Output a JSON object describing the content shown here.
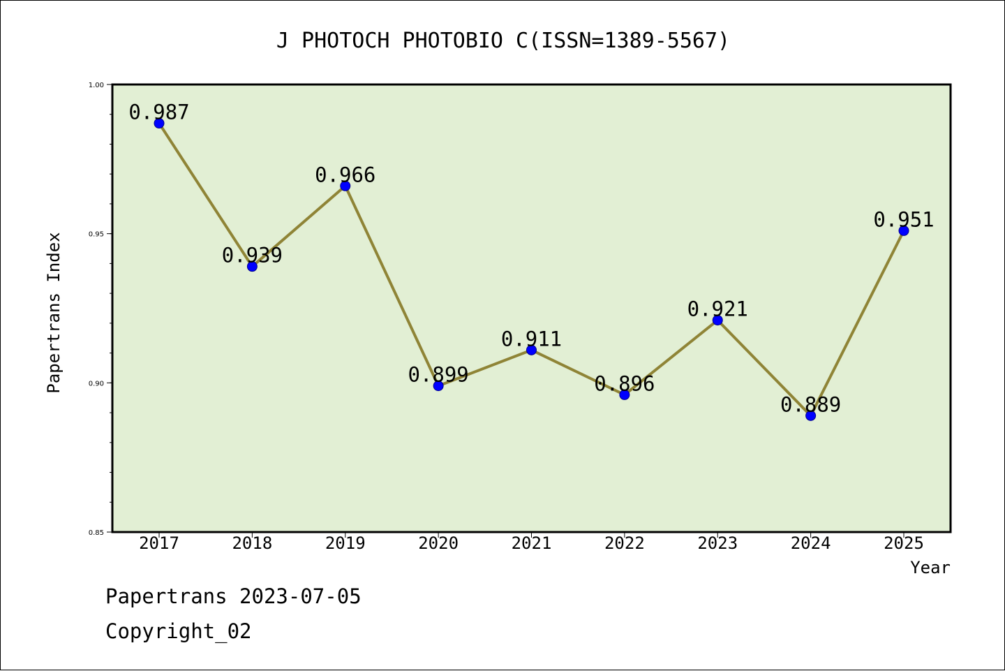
{
  "chart_data": {
    "type": "line",
    "title": "J PHOTOCH PHOTOBIO C(ISSN=1389-5567)",
    "xlabel": "Year",
    "ylabel": "Papertrans Index",
    "categories": [
      "2017",
      "2018",
      "2019",
      "2020",
      "2021",
      "2022",
      "2023",
      "2024",
      "2025"
    ],
    "values": [
      0.987,
      0.939,
      0.966,
      0.899,
      0.911,
      0.896,
      0.921,
      0.889,
      0.951
    ],
    "data_labels": [
      "0.987",
      "0.939",
      "0.966",
      "0.899",
      "0.911",
      "0.896",
      "0.921",
      "0.889",
      "0.951"
    ],
    "ylim": [
      0.85,
      1.0
    ],
    "y_major_ticks": [
      "0.85",
      "0.90",
      "0.95",
      "1.00"
    ],
    "y_minor_step": 0.01,
    "grid": false,
    "legend": "none",
    "colors": {
      "plot_background": "#e2efd4",
      "line": "#8f8436",
      "marker": "#0000ff"
    }
  },
  "footer": {
    "line1": "Papertrans 2023-07-05",
    "line2": "Copyright_02"
  }
}
